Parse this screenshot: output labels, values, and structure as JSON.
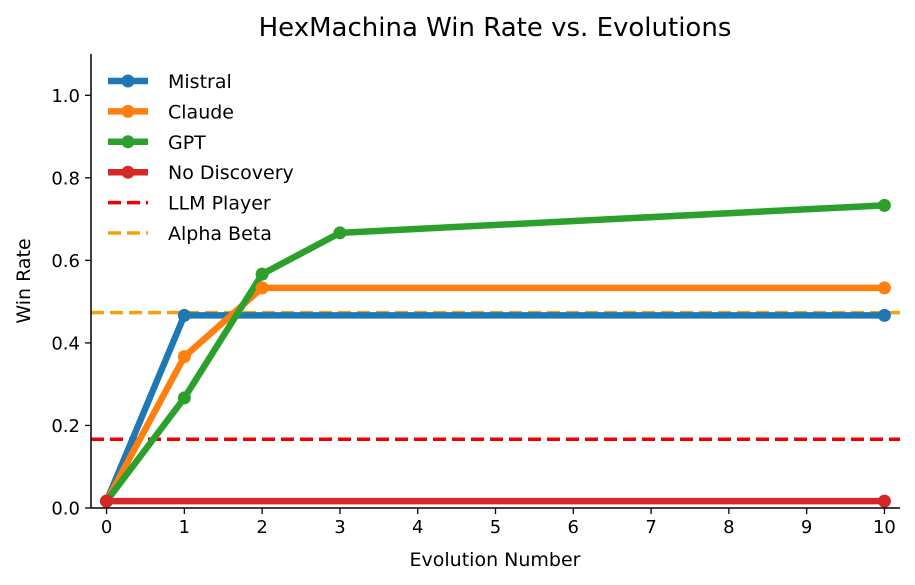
{
  "chart_data": {
    "type": "line",
    "title": "HexMachina Win Rate vs. Evolutions",
    "xlabel": "Evolution Number",
    "ylabel": "Win Rate",
    "xlim": [
      -0.2,
      10.2
    ],
    "ylim": [
      0,
      1.1
    ],
    "xticks": [
      0,
      1,
      2,
      3,
      4,
      5,
      6,
      7,
      8,
      9,
      10
    ],
    "yticks": [
      0.0,
      0.2,
      0.4,
      0.6,
      0.8,
      1.0
    ],
    "ytick_labels": [
      "0.0",
      "0.2",
      "0.4",
      "0.6",
      "0.8",
      "1.0"
    ],
    "grid": false,
    "legend_position": "upper-left",
    "series": [
      {
        "name": "Mistral",
        "color": "#1f77b4",
        "x": [
          0,
          1,
          10
        ],
        "y": [
          0.0167,
          0.4667,
          0.4667
        ]
      },
      {
        "name": "Claude",
        "color": "#ff7f0e",
        "x": [
          0,
          1,
          2,
          10
        ],
        "y": [
          0.0167,
          0.3667,
          0.5333,
          0.5333
        ]
      },
      {
        "name": "GPT",
        "color": "#2ca02c",
        "x": [
          0,
          1,
          2,
          3,
          10
        ],
        "y": [
          0.0167,
          0.2667,
          0.5667,
          0.6667,
          0.7333
        ]
      },
      {
        "name": "No Discovery",
        "color": "#d62728",
        "x": [
          0,
          10
        ],
        "y": [
          0.0167,
          0.0167
        ]
      }
    ],
    "reference_lines": [
      {
        "name": "LLM Player",
        "color": "#ee0000",
        "y": 0.1667,
        "style": "dashed"
      },
      {
        "name": "Alpha Beta",
        "color": "#f5a20a",
        "y": 0.4733,
        "style": "dashed"
      }
    ]
  }
}
